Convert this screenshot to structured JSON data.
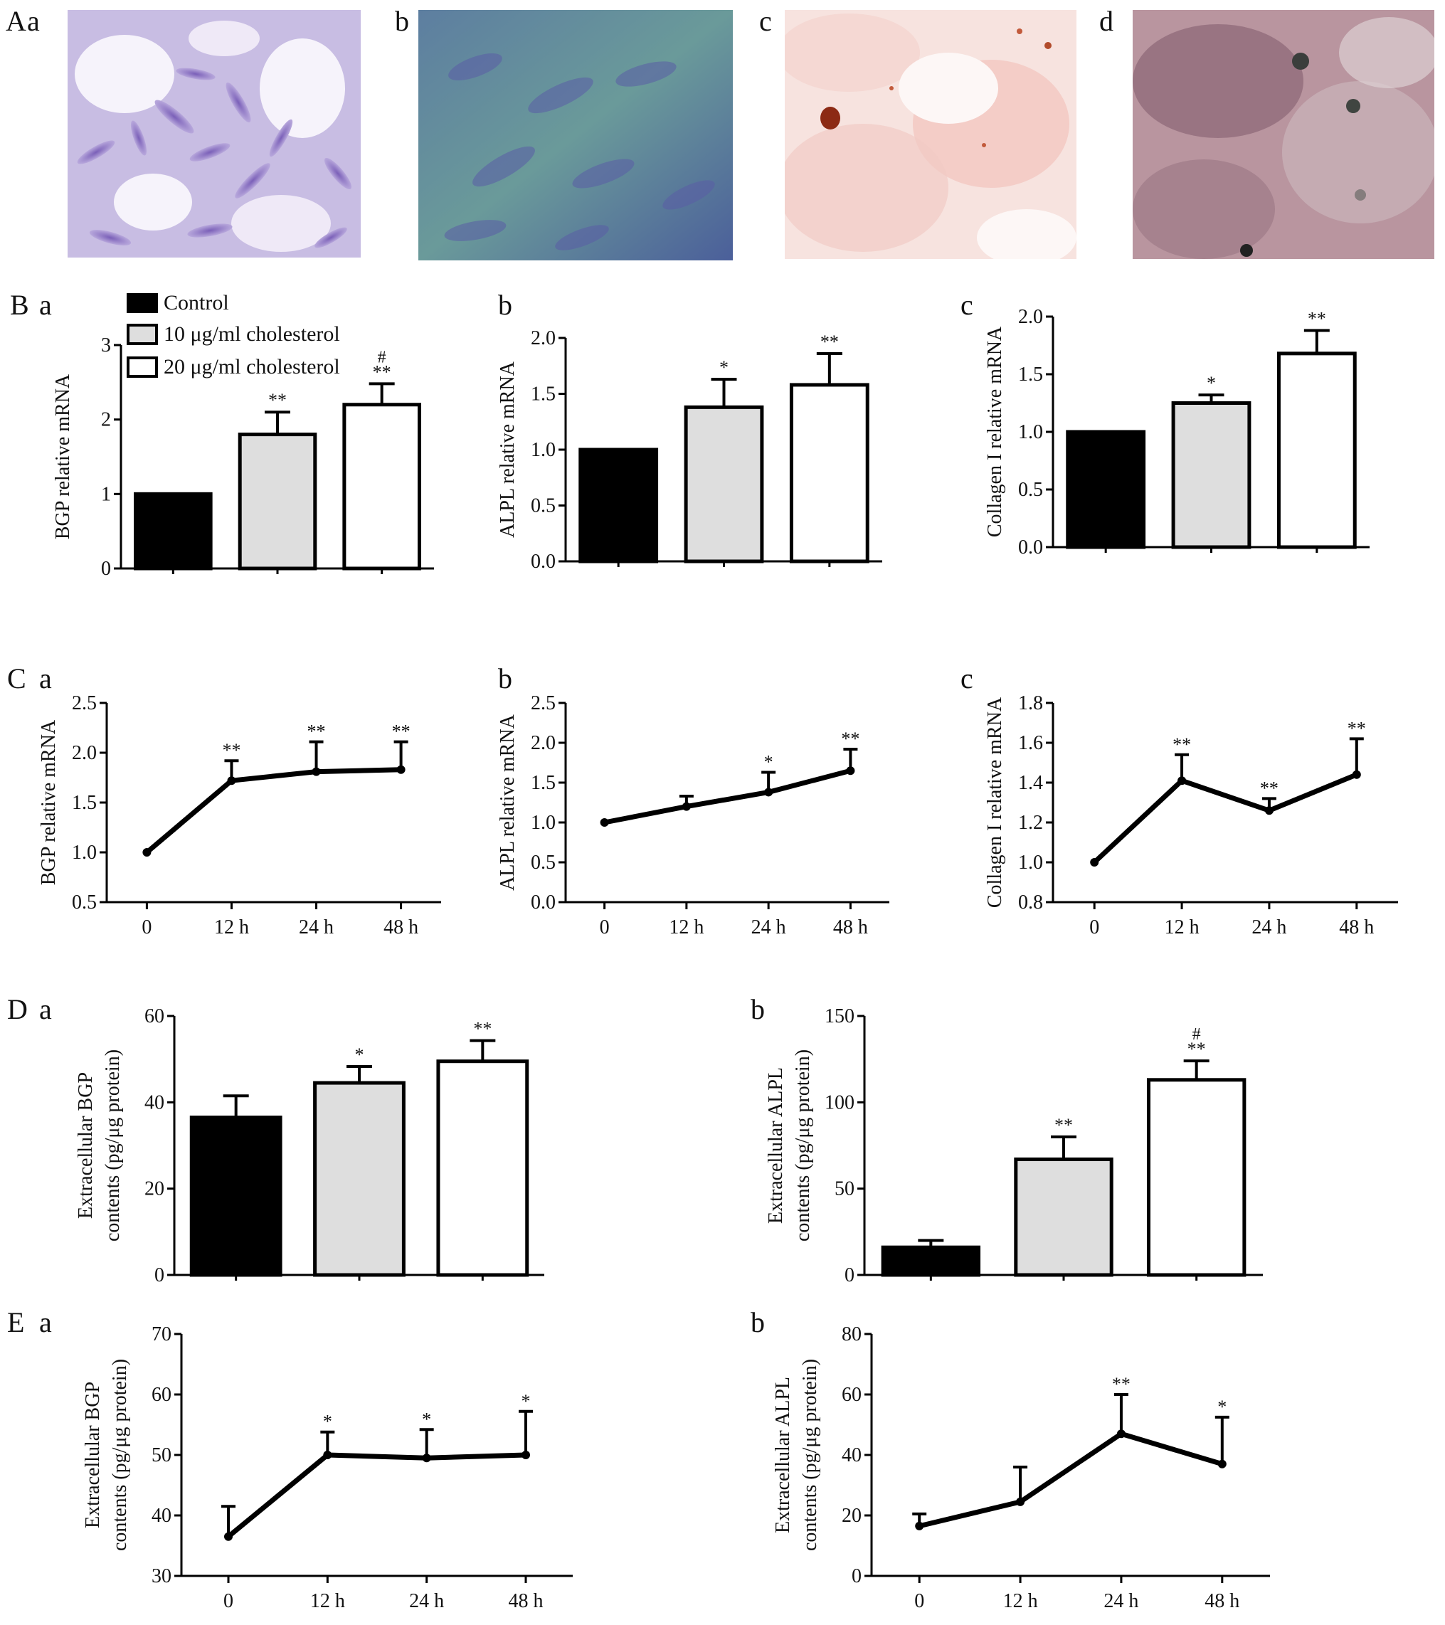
{
  "panels": {
    "A": "A",
    "A_a": "a",
    "A_b": "b",
    "A_c": "c",
    "A_d": "d",
    "B": "B",
    "B_a": "a",
    "B_b": "b",
    "B_c": "c",
    "C": "C",
    "C_a": "a",
    "C_b": "b",
    "C_c": "c",
    "D": "D",
    "D_a": "a",
    "D_b": "b",
    "E": "E",
    "E_a": "a",
    "E_b": "b"
  },
  "legend": {
    "items": [
      {
        "label": "Control",
        "color": "#000000"
      },
      {
        "label": "10 μg/ml cholesterol",
        "color": "#dedede"
      },
      {
        "label": "20 μg/ml cholesterol",
        "color": "#ffffff"
      }
    ]
  },
  "micrographs": [
    {
      "id": "A-a",
      "stain": "purple-cells"
    },
    {
      "id": "A-b",
      "stain": "blue-green"
    },
    {
      "id": "A-c",
      "stain": "red-dots"
    },
    {
      "id": "A-d",
      "stain": "dark-purple"
    }
  ],
  "chart_data": [
    {
      "id": "B-a",
      "type": "bar",
      "categories": [
        "Control",
        "10 μg/ml cholesterol",
        "20 μg/ml cholesterol"
      ],
      "values": [
        1.0,
        1.8,
        2.2
      ],
      "errors": [
        0,
        0.3,
        0.28
      ],
      "annotations": [
        "",
        "**",
        "**"
      ],
      "hash": [
        "",
        "",
        "#"
      ],
      "ylabel": "BGP relative mRNA",
      "ylim": [
        0,
        3
      ],
      "yticks": [
        "0",
        "1",
        "2",
        "3"
      ]
    },
    {
      "id": "B-b",
      "type": "bar",
      "categories": [
        "Control",
        "10 μg/ml cholesterol",
        "20 μg/ml cholesterol"
      ],
      "values": [
        1.0,
        1.38,
        1.58
      ],
      "errors": [
        0,
        0.25,
        0.28
      ],
      "annotations": [
        "",
        "*",
        "**"
      ],
      "hash": [
        "",
        "",
        ""
      ],
      "ylabel": "ALPL relative mRNA",
      "ylim": [
        0,
        2.0
      ],
      "yticks": [
        "0.0",
        "0.5",
        "1.0",
        "1.5",
        "2.0"
      ]
    },
    {
      "id": "B-c",
      "type": "bar",
      "categories": [
        "Control",
        "10 μg/ml cholesterol",
        "20 μg/ml cholesterol"
      ],
      "values": [
        1.0,
        1.25,
        1.68
      ],
      "errors": [
        0,
        0.07,
        0.2
      ],
      "annotations": [
        "",
        "*",
        "**"
      ],
      "hash": [
        "",
        "",
        ""
      ],
      "ylabel": "Collagen I relative mRNA",
      "ylim": [
        0,
        2.0
      ],
      "yticks": [
        "0.0",
        "0.5",
        "1.0",
        "1.5",
        "2.0"
      ]
    },
    {
      "id": "C-a",
      "type": "line",
      "categories": [
        "0",
        "12 h",
        "24 h",
        "48 h"
      ],
      "values": [
        1.0,
        1.72,
        1.81,
        1.83
      ],
      "errors": [
        0,
        0.2,
        0.3,
        0.28
      ],
      "annotations": [
        "",
        "**",
        "**",
        "**"
      ],
      "ylabel": "BGP relative mRNA",
      "ylim": [
        0.5,
        2.5
      ],
      "yticks": [
        "0.5",
        "1.0",
        "1.5",
        "2.0",
        "2.5"
      ]
    },
    {
      "id": "C-b",
      "type": "line",
      "categories": [
        "0",
        "12 h",
        "24 h",
        "48 h"
      ],
      "values": [
        1.0,
        1.2,
        1.38,
        1.65
      ],
      "errors": [
        0,
        0.13,
        0.25,
        0.27
      ],
      "annotations": [
        "",
        "",
        "*",
        "**"
      ],
      "ylabel": "ALPL relative mRNA",
      "ylim": [
        0,
        2.5
      ],
      "yticks": [
        "0.0",
        "0.5",
        "1.0",
        "1.5",
        "2.0",
        "2.5"
      ]
    },
    {
      "id": "C-c",
      "type": "line",
      "categories": [
        "0",
        "12 h",
        "24 h",
        "48 h"
      ],
      "values": [
        1.0,
        1.41,
        1.26,
        1.44
      ],
      "errors": [
        0,
        0.13,
        0.06,
        0.18
      ],
      "annotations": [
        "",
        "**",
        "**",
        "**"
      ],
      "ylabel": "Collagen I relative mRNA",
      "ylim": [
        0.8,
        1.8
      ],
      "yticks": [
        "0.8",
        "1.0",
        "1.2",
        "1.4",
        "1.6",
        "1.8"
      ]
    },
    {
      "id": "D-a",
      "type": "bar",
      "categories": [
        "Control",
        "10 μg/ml cholesterol",
        "20 μg/ml cholesterol"
      ],
      "values": [
        36.5,
        44.5,
        49.5
      ],
      "errors": [
        5,
        3.8,
        4.8
      ],
      "annotations": [
        "",
        "*",
        "**"
      ],
      "hash": [
        "",
        "",
        ""
      ],
      "ylabel": [
        "Extracellular BGP",
        "contents (pg/μg protein)"
      ],
      "ylim": [
        0,
        60
      ],
      "yticks": [
        "0",
        "20",
        "40",
        "60"
      ]
    },
    {
      "id": "D-b",
      "type": "bar",
      "categories": [
        "Control",
        "10 μg/ml cholesterol",
        "20 μg/ml cholesterol"
      ],
      "values": [
        16,
        67,
        113
      ],
      "errors": [
        4,
        13,
        11
      ],
      "annotations": [
        "",
        "**",
        "**"
      ],
      "hash": [
        "",
        "",
        "#"
      ],
      "ylabel": [
        "Extracellular ALPL",
        "contents (pg/μg protein)"
      ],
      "ylim": [
        0,
        150
      ],
      "yticks": [
        "0",
        "50",
        "100",
        "150"
      ]
    },
    {
      "id": "E-a",
      "type": "line",
      "categories": [
        "0",
        "12 h",
        "24 h",
        "48 h"
      ],
      "values": [
        36.5,
        50,
        49.5,
        50
      ],
      "errors": [
        5,
        3.8,
        4.7,
        7.2
      ],
      "annotations": [
        "",
        "*",
        "*",
        "*"
      ],
      "ylabel": [
        "Extracellular BGP",
        "contents (pg/μg protein)"
      ],
      "ylim": [
        30,
        70
      ],
      "yticks": [
        "30",
        "40",
        "50",
        "60",
        "70"
      ]
    },
    {
      "id": "E-b",
      "type": "line",
      "categories": [
        "0",
        "12 h",
        "24 h",
        "48 h"
      ],
      "values": [
        16.5,
        24.5,
        47,
        37
      ],
      "errors": [
        4,
        11.5,
        13,
        15.5
      ],
      "annotations": [
        "",
        "",
        "**",
        "*"
      ],
      "ylabel": [
        "Extracellular ALPL",
        "contents (pg/μg protein)"
      ],
      "ylim": [
        0,
        80
      ],
      "yticks": [
        "0",
        "20",
        "40",
        "60",
        "80"
      ]
    }
  ]
}
